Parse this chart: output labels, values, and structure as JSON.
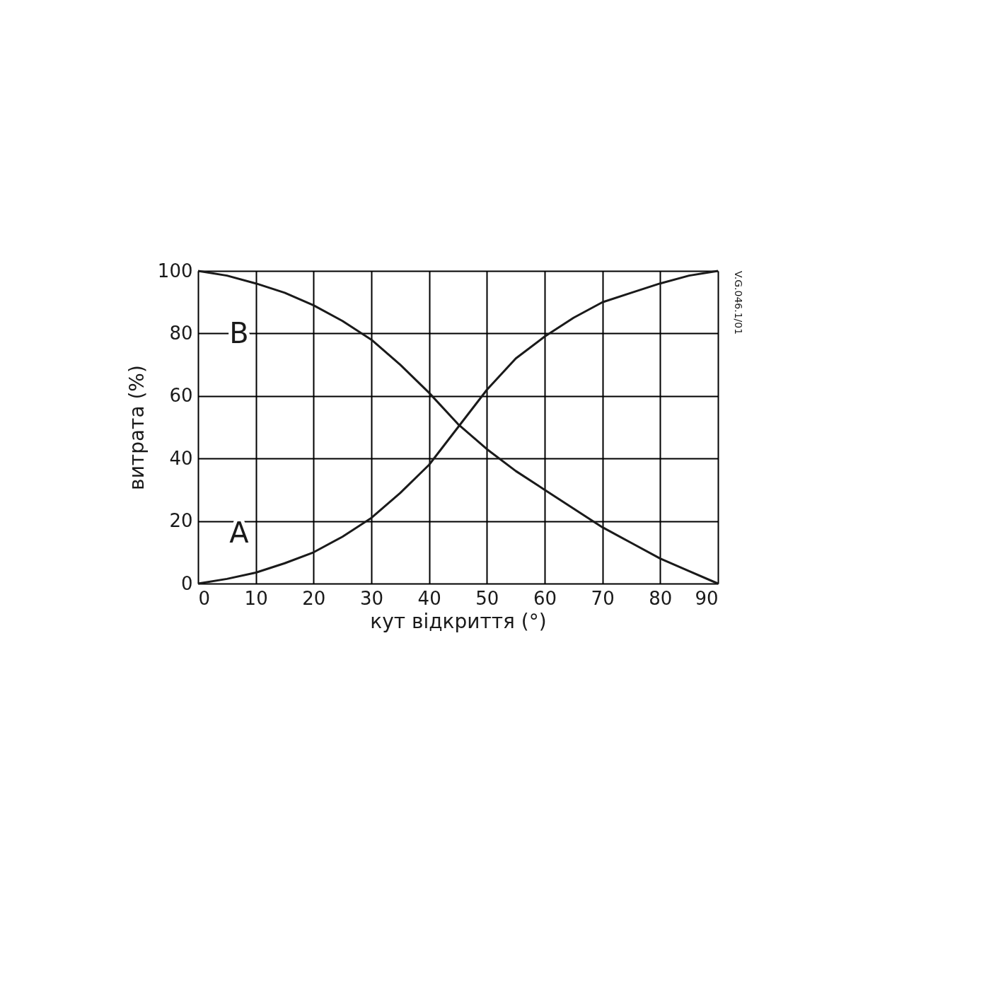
{
  "chart_data": {
    "type": "line",
    "xlabel": "кут відкриття (°)",
    "ylabel": "витрата (%)",
    "x": [
      0,
      5,
      10,
      15,
      20,
      25,
      30,
      35,
      40,
      45,
      50,
      55,
      60,
      65,
      70,
      75,
      80,
      85,
      90
    ],
    "series": [
      {
        "name": "A",
        "color": "#1a1a1a",
        "values": [
          0,
          1.5,
          3.5,
          6.5,
          10,
          15,
          21,
          29,
          38,
          50,
          62,
          72,
          79,
          85,
          90,
          93,
          96,
          98.5,
          100
        ]
      },
      {
        "name": "B",
        "color": "#1a1a1a",
        "values": [
          100,
          98.5,
          96,
          93,
          89,
          84,
          78,
          70,
          61,
          51,
          43,
          36,
          30,
          24,
          18,
          13,
          8,
          4,
          0
        ]
      }
    ],
    "xlim": [
      0,
      90
    ],
    "xticks": [
      0,
      10,
      20,
      30,
      40,
      50,
      60,
      70,
      80,
      90
    ],
    "ylim": [
      0,
      100
    ],
    "yticks": [
      0,
      20,
      40,
      60,
      80,
      100
    ],
    "grid": true,
    "marker": "none",
    "line_style": "solid",
    "annotations": [
      "V.G.046.1/01"
    ]
  }
}
